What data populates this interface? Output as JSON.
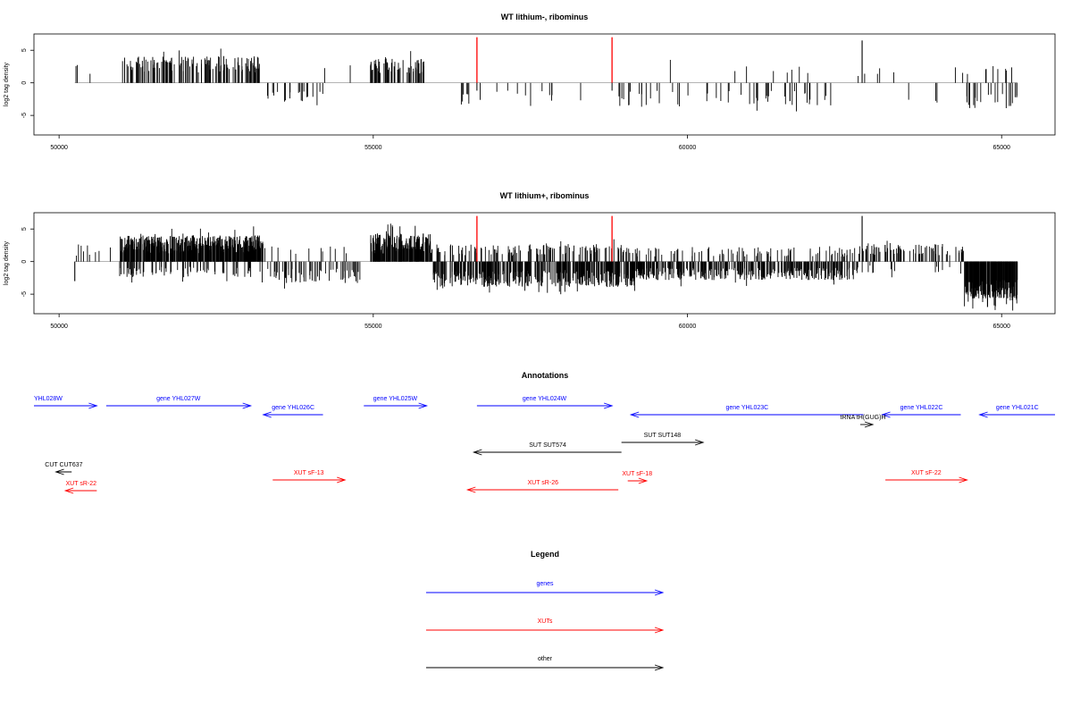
{
  "chart_data": [
    {
      "type": "bar",
      "title": "WT lithium-, ribominus",
      "ylabel": "log2 tag density",
      "xlim": [
        49600,
        65850
      ],
      "ylim": [
        -8,
        7.5
      ],
      "xticks": [
        "50000",
        "55000",
        "60000",
        "65000"
      ],
      "yticks": [
        "5",
        "0",
        "-5"
      ],
      "highlight_color": "#ff0000",
      "highlight_positions": [
        56650,
        58800
      ],
      "highlight_value": 7,
      "segments": [
        {
          "start": 50250,
          "end": 50500,
          "density": 0.25,
          "mean": 2.2,
          "sign": 1,
          "jitter": 0.4
        },
        {
          "start": 51000,
          "end": 53200,
          "density": 1.3,
          "mean": 2.8,
          "sign": 1,
          "jitter": 0.45
        },
        {
          "start": 53200,
          "end": 54200,
          "density": 0.4,
          "mean": 2.4,
          "sign": -1,
          "jitter": 0.45
        },
        {
          "start": 54200,
          "end": 54800,
          "density": 0.08,
          "mean": 2.2,
          "sign": 1,
          "jitter": 0.5
        },
        {
          "start": 54950,
          "end": 55900,
          "density": 1.3,
          "mean": 2.6,
          "sign": 1,
          "jitter": 0.45
        },
        {
          "start": 56400,
          "end": 58700,
          "density": 0.15,
          "mean": 2.4,
          "sign": -1,
          "jitter": 0.5
        },
        {
          "start": 58900,
          "end": 62300,
          "density": 0.3,
          "mean": 2.4,
          "sign": -1,
          "jitter": 0.5
        },
        {
          "start": 59100,
          "end": 62300,
          "density": 0.05,
          "mean": 1.9,
          "sign": 1,
          "jitter": 0.5
        },
        {
          "start": 62300,
          "end": 63300,
          "density": 0.1,
          "mean": 2.0,
          "sign": 1,
          "jitter": 0.5
        },
        {
          "start": 63300,
          "end": 64300,
          "density": 0.05,
          "mean": 2.5,
          "sign": -1,
          "jitter": 0.4
        },
        {
          "start": 64200,
          "end": 65200,
          "density": 0.2,
          "mean": 2.0,
          "sign": 1,
          "jitter": 0.4
        },
        {
          "start": 64400,
          "end": 65250,
          "density": 0.5,
          "mean": 2.8,
          "sign": -1,
          "jitter": 0.4
        }
      ],
      "spikes": [
        {
          "x": 62780,
          "value": 6.5
        }
      ]
    },
    {
      "type": "bar",
      "title": "WT lithium+, ribominus",
      "ylabel": "log2 tag density",
      "xlim": [
        49600,
        65850
      ],
      "ylim": [
        -8,
        7.5
      ],
      "xticks": [
        "50000",
        "55000",
        "60000",
        "65000"
      ],
      "yticks": [
        "5",
        "0",
        "-5"
      ],
      "highlight_color": "#ff0000",
      "highlight_positions": [
        56650,
        58800
      ],
      "highlight_value": 7,
      "segments": [
        {
          "start": 50250,
          "end": 50950,
          "density": 0.25,
          "mean": 1.8,
          "sign": 1,
          "jitter": 0.5
        },
        {
          "start": 50950,
          "end": 53250,
          "density": 4.0,
          "mean": 2.6,
          "sign": 1,
          "jitter": 0.55
        },
        {
          "start": 50950,
          "end": 53250,
          "density": 0.7,
          "mean": 1.6,
          "sign": -1,
          "jitter": 0.5
        },
        {
          "start": 53250,
          "end": 54800,
          "density": 0.8,
          "mean": 2.2,
          "sign": -1,
          "jitter": 0.5
        },
        {
          "start": 53250,
          "end": 54800,
          "density": 0.15,
          "mean": 1.6,
          "sign": 1,
          "jitter": 0.5
        },
        {
          "start": 54950,
          "end": 55950,
          "density": 3.5,
          "mean": 2.8,
          "sign": 1,
          "jitter": 0.55
        },
        {
          "start": 55950,
          "end": 59200,
          "density": 2.2,
          "mean": 2.6,
          "sign": -1,
          "jitter": 0.5
        },
        {
          "start": 55950,
          "end": 59200,
          "density": 0.8,
          "mean": 1.8,
          "sign": 1,
          "jitter": 0.5
        },
        {
          "start": 59200,
          "end": 62700,
          "density": 1.8,
          "mean": 1.9,
          "sign": -1,
          "jitter": 0.5
        },
        {
          "start": 59200,
          "end": 62700,
          "density": 0.5,
          "mean": 1.5,
          "sign": 1,
          "jitter": 0.5
        },
        {
          "start": 62700,
          "end": 64400,
          "density": 0.9,
          "mean": 1.9,
          "sign": 1,
          "jitter": 0.5
        },
        {
          "start": 62700,
          "end": 64400,
          "density": 0.2,
          "mean": 1.2,
          "sign": -1,
          "jitter": 0.5
        },
        {
          "start": 64400,
          "end": 65250,
          "density": 5.0,
          "mean": 4.2,
          "sign": -1,
          "jitter": 0.35
        }
      ],
      "spikes": [
        {
          "x": 62780,
          "value": 7
        },
        {
          "x": 50250,
          "value": -3
        }
      ]
    }
  ],
  "annotations": {
    "title": "Annotations",
    "colors": {
      "genes": "#0000ff",
      "XUTs": "#ff0000",
      "other": "#000000"
    },
    "features": [
      {
        "label": "YHL028W",
        "category": "genes",
        "start": 49600,
        "end": 50600,
        "strand": "+",
        "row": 0
      },
      {
        "label": "gene YHL027W",
        "category": "genes",
        "start": 50750,
        "end": 53050,
        "strand": "+",
        "row": 0
      },
      {
        "label": "gene YHL026C",
        "category": "genes",
        "start": 53250,
        "end": 54200,
        "strand": "-",
        "row": 1
      },
      {
        "label": "gene YHL025W",
        "category": "genes",
        "start": 54850,
        "end": 55850,
        "strand": "+",
        "row": 0
      },
      {
        "label": "gene YHL024W",
        "category": "genes",
        "start": 56650,
        "end": 58800,
        "strand": "+",
        "row": 0
      },
      {
        "label": "gene YHL023C",
        "category": "genes",
        "start": 59100,
        "end": 62800,
        "strand": "-",
        "row": 1
      },
      {
        "label": "gene YHL022C",
        "category": "genes",
        "start": 63100,
        "end": 64350,
        "strand": "-",
        "row": 1
      },
      {
        "label": "gene YHL021C",
        "category": "genes",
        "start": 64650,
        "end": 65850,
        "strand": "-",
        "row": 1
      },
      {
        "label": "tRNA tH(GUG)H",
        "category": "other",
        "start": 62750,
        "end": 62950,
        "strand": "+",
        "row": 2
      },
      {
        "label": "SUT SUT574",
        "category": "other",
        "start": 56600,
        "end": 58950,
        "strand": "-",
        "row": 3
      },
      {
        "label": "SUT SUT148",
        "category": "other",
        "start": 58950,
        "end": 60250,
        "strand": "+",
        "row": 4
      },
      {
        "label": "CUT CUT637",
        "category": "other",
        "start": 49950,
        "end": 50200,
        "strand": "-",
        "row": 5
      },
      {
        "label": "XUT sR-22",
        "category": "XUTs",
        "start": 50100,
        "end": 50600,
        "strand": "-",
        "row": 6
      },
      {
        "label": "XUT sF-13",
        "category": "XUTs",
        "start": 53400,
        "end": 54550,
        "strand": "+",
        "row": 7
      },
      {
        "label": "XUT sR-26",
        "category": "XUTs",
        "start": 56500,
        "end": 58900,
        "strand": "-",
        "row": 8
      },
      {
        "label": "XUT sF-18",
        "category": "XUTs",
        "start": 59050,
        "end": 59350,
        "strand": "+",
        "row": 9
      },
      {
        "label": "XUT sF-22",
        "category": "XUTs",
        "start": 63150,
        "end": 64450,
        "strand": "+",
        "row": 10
      }
    ]
  },
  "legend": {
    "title": "Legend",
    "items": [
      {
        "label": "genes",
        "color": "#0000ff"
      },
      {
        "label": "XUTs",
        "color": "#ff0000"
      },
      {
        "label": "other",
        "color": "#000000"
      }
    ]
  }
}
